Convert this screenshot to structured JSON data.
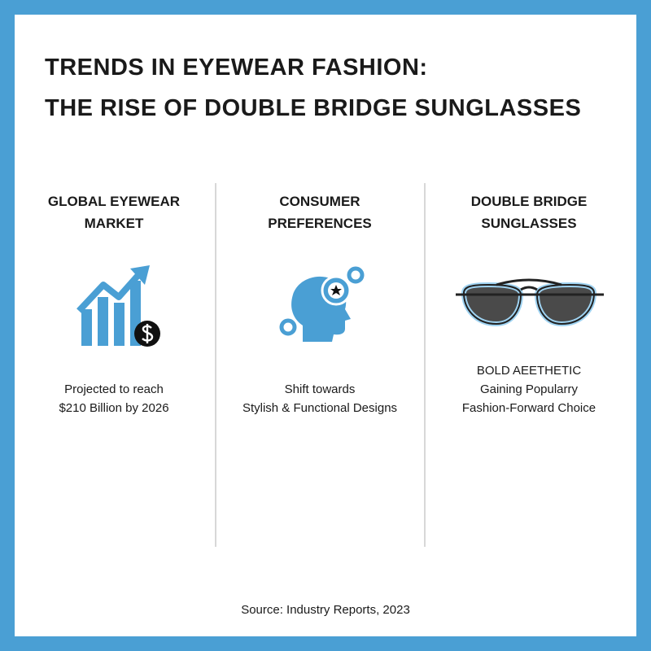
{
  "header": {
    "title_lines": [
      "TRENDS IN EYEWEAR FASHION:",
      "THE RISE OF DOUBLE BRIDGE SUNGLASSES"
    ]
  },
  "columns": [
    {
      "heading_lines": [
        "GLOBAL EYEWEAR",
        "MARKET"
      ],
      "text_lines": [
        "Projected to reach",
        "$210 Billion by 2026"
      ]
    },
    {
      "heading_lines": [
        "CONSUMER",
        "PREFERENCES"
      ],
      "text_lines": [
        "Shift towards",
        "Stylish & Functional Designs"
      ]
    },
    {
      "heading_lines": [
        "DOUBLE BRIDGE",
        "SUNGLASSES"
      ],
      "text_lines": [
        "BOLD AEETHETIC",
        "Gaining Popularry",
        "Fashion-Forward Choice"
      ]
    }
  ],
  "footer": {
    "source": "Source: Industry Reports, 2023"
  }
}
